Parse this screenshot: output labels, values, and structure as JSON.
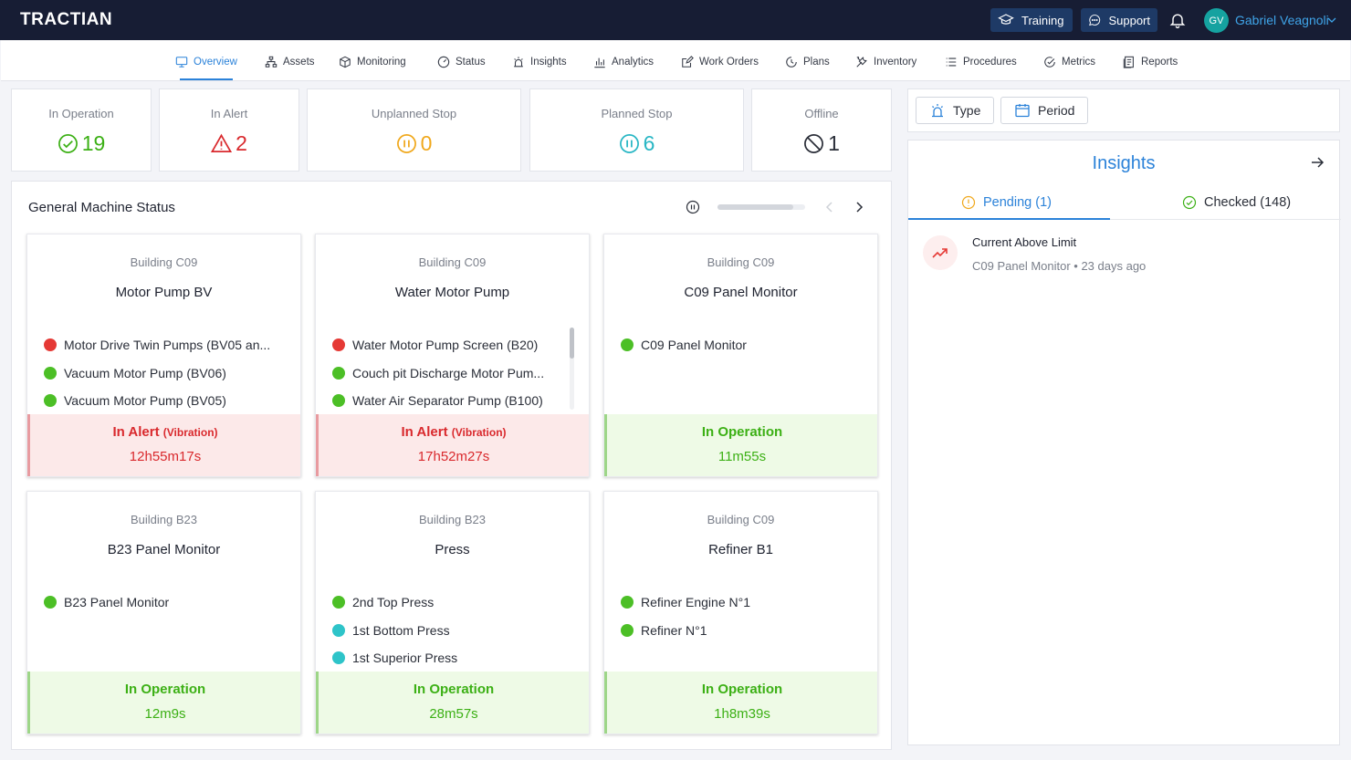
{
  "app": {
    "logo": "TRACTIAN"
  },
  "header": {
    "training_label": "Training",
    "support_label": "Support",
    "user_initials": "GV",
    "user_name": "Gabriel Veagnoli"
  },
  "nav": {
    "items": [
      {
        "label": "Overview",
        "icon": "monitor-icon"
      },
      {
        "label": "Assets",
        "icon": "hierarchy-icon"
      },
      {
        "label": "Monitoring",
        "icon": "cube-icon"
      },
      {
        "label": "Status",
        "icon": "gauge-icon"
      },
      {
        "label": "Insights",
        "icon": "alarm-light-icon"
      },
      {
        "label": "Analytics",
        "icon": "bar-chart-icon"
      },
      {
        "label": "Work Orders",
        "icon": "edit-icon"
      },
      {
        "label": "Plans",
        "icon": "clock-icon"
      },
      {
        "label": "Inventory",
        "icon": "tools-icon"
      },
      {
        "label": "Procedures",
        "icon": "list-icon"
      },
      {
        "label": "Metrics",
        "icon": "check-gauge-icon"
      },
      {
        "label": "Reports",
        "icon": "report-icon"
      }
    ],
    "active": "Overview"
  },
  "kpis": [
    {
      "label": "In Operation",
      "value": "19",
      "icon": "check-circle-icon",
      "color": "#3cb015"
    },
    {
      "label": "In Alert",
      "value": "2",
      "icon": "warning-triangle-icon",
      "color": "#d9292d"
    },
    {
      "label": "Unplanned Stop",
      "value": "0",
      "icon": "pause-circle-icon",
      "color": "#f0a81c"
    },
    {
      "label": "Planned Stop",
      "value": "6",
      "icon": "pause-circle-icon",
      "color": "#27b6c4"
    },
    {
      "label": "Offline",
      "value": "1",
      "icon": "blocked-icon",
      "color": "#2a2e38"
    }
  ],
  "machine_status": {
    "title": "General Machine Status",
    "progress": 0.86,
    "cards": [
      {
        "building": "Building C09",
        "name": "Motor Pump BV",
        "assets": [
          {
            "label": "Motor Drive Twin Pumps (BV05 an...",
            "color": "#e53935"
          },
          {
            "label": "Vacuum Motor Pump (BV06)",
            "color": "#4cbf26"
          },
          {
            "label": "Vacuum Motor Pump (BV05)",
            "color": "#4cbf26"
          }
        ],
        "status": "In Alert",
        "status_detail": "(Vibration)",
        "status_type": "alert",
        "duration": "12h55m17s"
      },
      {
        "building": "Building C09",
        "name": "Water Motor Pump",
        "assets": [
          {
            "label": "Water Motor Pump Screen (B20)",
            "color": "#e53935"
          },
          {
            "label": "Couch pit Discharge Motor Pum...",
            "color": "#4cbf26"
          },
          {
            "label": "Water Air Separator Pump (B100)",
            "color": "#4cbf26"
          }
        ],
        "status": "In Alert",
        "status_detail": "(Vibration)",
        "status_type": "alert",
        "duration": "17h52m27s",
        "scrollable": true
      },
      {
        "building": "Building C09",
        "name": "C09 Panel Monitor",
        "assets": [
          {
            "label": "C09 Panel Monitor",
            "color": "#4cbf26"
          }
        ],
        "status": "In Operation",
        "status_detail": "",
        "status_type": "ok",
        "duration": "11m55s"
      },
      {
        "building": "Building B23",
        "name": "B23 Panel Monitor",
        "assets": [
          {
            "label": "B23 Panel Monitor",
            "color": "#4cbf26"
          }
        ],
        "status": "In Operation",
        "status_detail": "",
        "status_type": "ok",
        "duration": "12m9s"
      },
      {
        "building": "Building B23",
        "name": "Press",
        "assets": [
          {
            "label": "2nd Top Press",
            "color": "#4cbf26"
          },
          {
            "label": "1st Bottom Press",
            "color": "#2ec4c9"
          },
          {
            "label": "1st Superior Press",
            "color": "#2ec4c9"
          }
        ],
        "status": "In Operation",
        "status_detail": "",
        "status_type": "ok",
        "duration": "28m57s"
      },
      {
        "building": "Building C09",
        "name": "Refiner B1",
        "assets": [
          {
            "label": "Refiner Engine N°1",
            "color": "#4cbf26"
          },
          {
            "label": "Refiner N°1",
            "color": "#4cbf26"
          }
        ],
        "status": "In Operation",
        "status_detail": "",
        "status_type": "ok",
        "duration": "1h8m39s"
      }
    ]
  },
  "filters": {
    "type_label": "Type",
    "period_label": "Period"
  },
  "insights": {
    "title": "Insights",
    "tabs": {
      "pending": "Pending (1)",
      "checked": "Checked (148)"
    },
    "items": [
      {
        "title": "Current Above Limit",
        "meta": "C09 Panel Monitor • 23 days ago",
        "icon": "trend-up-icon"
      }
    ]
  }
}
